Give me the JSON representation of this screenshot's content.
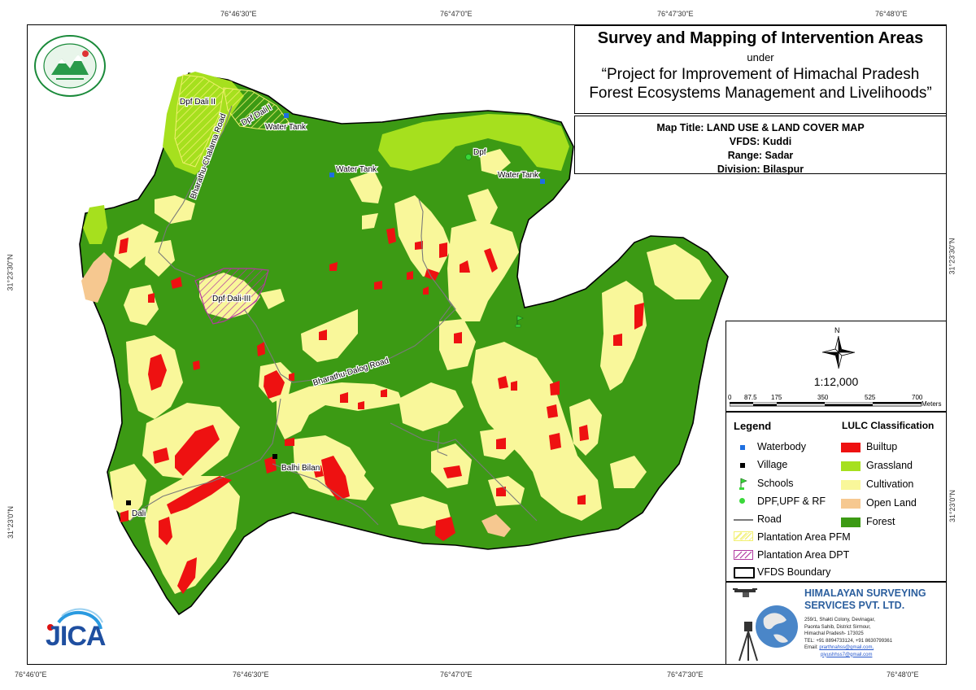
{
  "coords": {
    "top": [
      "76°46'30\"E",
      "76°47'0\"E",
      "76°47'30\"E",
      "76°48'0\"E"
    ],
    "bottom": [
      "76°46'0\"E",
      "76°46'30\"E",
      "76°47'0\"E",
      "76°47'30\"E",
      "76°48'0\"E"
    ],
    "left": [
      "31°23'30\"N",
      "31°23'0\"N"
    ],
    "right": [
      "31°23'30\"N",
      "31°23'0\"N"
    ]
  },
  "title": {
    "main": "Survey and Mapping of Intervention Areas",
    "under": "under",
    "project_line1": "“Project for Improvement of Himachal Pradesh",
    "project_line2": "Forest Ecosystems Management and Livelihoods”"
  },
  "info": {
    "map_title": "Map Title: LAND USE & LAND COVER MAP",
    "vfds": "VFDS: Kuddi",
    "range": "Range: Sadar",
    "division": "Division: Bilaspur"
  },
  "scale": {
    "north": "N",
    "ratio": "1:12,000",
    "ticks": [
      "0",
      "87.5",
      "175",
      "350",
      "525",
      "700"
    ],
    "unit": "Meters"
  },
  "legend": {
    "title": "Legend",
    "items": [
      "Waterbody",
      "Village",
      "Schools",
      "DPF,UPF & RF",
      "Road",
      "Plantation Area PFM",
      "Plantation Area DPT",
      "VFDS Boundary"
    ]
  },
  "lulc": {
    "title": "LULC Classification",
    "classes": [
      {
        "label": "Builtup",
        "color": "#ee1111"
      },
      {
        "label": "Grassland",
        "color": "#a6e01e"
      },
      {
        "label": "Cultivation",
        "color": "#f9f79a"
      },
      {
        "label": "Open Land",
        "color": "#f6c890"
      },
      {
        "label": "Forest",
        "color": "#3c9a14"
      }
    ]
  },
  "company": {
    "name_line1": "HIMALAYAN SURVEYING",
    "name_line2": "SERVICES PVT. LTD.",
    "address": [
      "259/1, Shakti Colony, Devinagar,",
      "Paonta Sahib, District Sirmour,",
      "Himachal Pradesh- 173025",
      "TEL: +91 8894733124, +91 8630799361"
    ],
    "email_label": "Email:",
    "email1": "prarthnahss@gmail.com,",
    "email2": "piyushhss7@gmail.com"
  },
  "map_labels": {
    "dpf_dali_2": "Dpf Dali II",
    "dpf_dali_1": "Dpf Dali I",
    "water_tank_1": "Water Tank",
    "water_tank_2": "Water Tank",
    "water_tank_3": "Water Tank",
    "dpf": "Dpf",
    "dpf_dali_3": "Dpf Dali-III",
    "road_1": "Bharathu-Chalama Road",
    "road_2": "Bharathu-Dalog Road",
    "balhi_bilan": "Balhi Bilan",
    "dali": "Dali"
  },
  "logos": {
    "forest_dept": "forest-department-logo",
    "jica": "JICA"
  }
}
